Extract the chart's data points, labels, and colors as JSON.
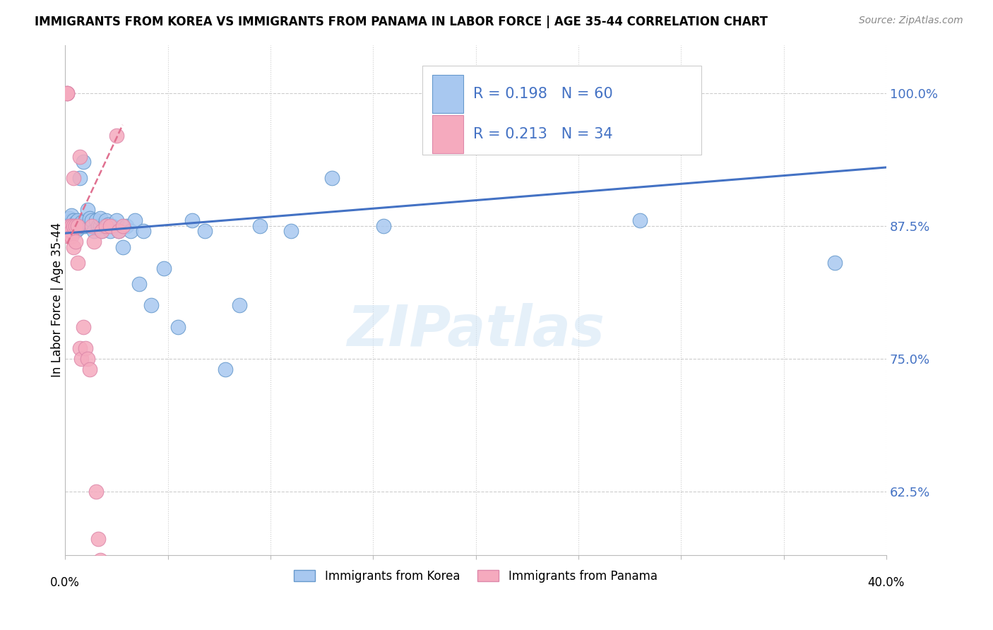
{
  "title": "IMMIGRANTS FROM KOREA VS IMMIGRANTS FROM PANAMA IN LABOR FORCE | AGE 35-44 CORRELATION CHART",
  "source": "Source: ZipAtlas.com",
  "ylabel": "In Labor Force | Age 35-44",
  "ytick_values": [
    0.625,
    0.75,
    0.875,
    1.0
  ],
  "xlim": [
    0.0,
    0.4
  ],
  "ylim": [
    0.565,
    1.045
  ],
  "legend_blue_R": "0.198",
  "legend_blue_N": "60",
  "legend_pink_R": "0.213",
  "legend_pink_N": "34",
  "korea_color": "#A8C8F0",
  "korea_edge": "#6699CC",
  "panama_color": "#F5AABE",
  "panama_edge": "#DD88AA",
  "trend_blue_color": "#4472C4",
  "trend_pink_color": "#E07090",
  "watermark": "ZIPatlas",
  "legend_label_blue": "Immigrants from Korea",
  "legend_label_pink": "Immigrants from Panama",
  "korea_x": [
    0.001,
    0.001,
    0.002,
    0.002,
    0.003,
    0.003,
    0.003,
    0.004,
    0.004,
    0.004,
    0.005,
    0.005,
    0.005,
    0.006,
    0.006,
    0.006,
    0.007,
    0.007,
    0.008,
    0.008,
    0.009,
    0.009,
    0.01,
    0.01,
    0.011,
    0.012,
    0.012,
    0.013,
    0.014,
    0.015,
    0.016,
    0.017,
    0.017,
    0.018,
    0.019,
    0.02,
    0.021,
    0.022,
    0.023,
    0.025,
    0.026,
    0.028,
    0.03,
    0.032,
    0.034,
    0.036,
    0.038,
    0.042,
    0.048,
    0.055,
    0.062,
    0.068,
    0.078,
    0.085,
    0.095,
    0.11,
    0.13,
    0.155,
    0.28,
    0.375
  ],
  "korea_y": [
    0.875,
    0.878,
    0.882,
    0.875,
    0.875,
    0.88,
    0.885,
    0.87,
    0.875,
    0.88,
    0.875,
    0.87,
    0.878,
    0.875,
    0.88,
    0.872,
    0.92,
    0.875,
    0.878,
    0.875,
    0.935,
    0.875,
    0.875,
    0.88,
    0.89,
    0.875,
    0.882,
    0.88,
    0.87,
    0.88,
    0.875,
    0.875,
    0.882,
    0.87,
    0.875,
    0.88,
    0.876,
    0.87,
    0.875,
    0.88,
    0.87,
    0.855,
    0.875,
    0.87,
    0.88,
    0.82,
    0.87,
    0.8,
    0.835,
    0.78,
    0.88,
    0.87,
    0.74,
    0.8,
    0.875,
    0.87,
    0.92,
    0.875,
    0.88,
    0.84
  ],
  "panama_x": [
    0.001,
    0.001,
    0.001,
    0.002,
    0.002,
    0.002,
    0.003,
    0.003,
    0.003,
    0.004,
    0.004,
    0.004,
    0.005,
    0.005,
    0.006,
    0.006,
    0.007,
    0.007,
    0.008,
    0.009,
    0.01,
    0.011,
    0.012,
    0.013,
    0.014,
    0.015,
    0.016,
    0.017,
    0.018,
    0.02,
    0.022,
    0.025,
    0.026,
    0.028
  ],
  "panama_y": [
    1.0,
    1.0,
    1.0,
    0.875,
    0.87,
    0.865,
    0.875,
    0.87,
    0.865,
    0.92,
    0.875,
    0.855,
    0.875,
    0.86,
    0.875,
    0.84,
    0.94,
    0.76,
    0.75,
    0.78,
    0.76,
    0.75,
    0.74,
    0.875,
    0.86,
    0.625,
    0.58,
    0.56,
    0.87,
    0.875,
    0.875,
    0.96,
    0.87,
    0.875
  ],
  "blue_trend_x": [
    0.0,
    0.4
  ],
  "blue_trend_y": [
    0.868,
    0.93
  ],
  "pink_trend_x": [
    0.001,
    0.028
  ],
  "pink_trend_y": [
    0.858,
    0.97
  ]
}
